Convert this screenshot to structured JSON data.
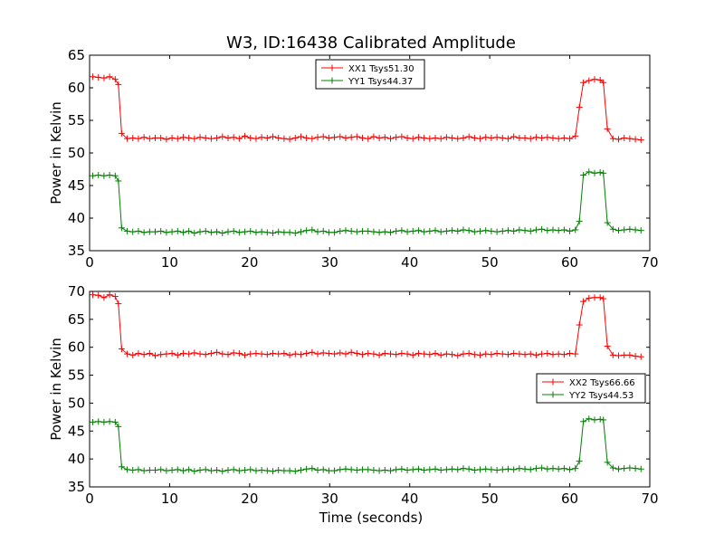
{
  "chart_data": [
    {
      "type": "line",
      "title": "W3, ID:16438 Calibrated Amplitude",
      "xlabel": "",
      "ylabel": "Power in Kelvin",
      "xlim": [
        0,
        70
      ],
      "ylim": [
        35,
        65
      ],
      "xticks": [
        0,
        10,
        20,
        30,
        40,
        50,
        60,
        70
      ],
      "yticks": [
        35,
        40,
        45,
        50,
        55,
        60,
        65
      ],
      "grid": false,
      "legend_position": "top-center",
      "series": [
        {
          "name": "XX1 Tsys51.30",
          "color": "#ff0000",
          "x": [
            0.4,
            1.1,
            1.8,
            2.5,
            3.2,
            3.6,
            4.0,
            4.7,
            5.4,
            6.1,
            6.8,
            7.5,
            8.2,
            8.9,
            9.6,
            10.3,
            11.0,
            11.7,
            12.4,
            13.1,
            13.8,
            14.5,
            15.2,
            15.9,
            16.6,
            17.3,
            18.0,
            18.7,
            19.4,
            20.1,
            20.8,
            21.5,
            22.2,
            22.9,
            23.6,
            24.3,
            25.0,
            25.7,
            26.4,
            27.1,
            27.8,
            28.5,
            29.2,
            29.9,
            30.6,
            31.3,
            32.0,
            32.7,
            33.4,
            34.1,
            34.8,
            35.5,
            36.2,
            36.9,
            37.6,
            38.3,
            39.0,
            39.7,
            40.4,
            41.1,
            41.8,
            42.5,
            43.2,
            43.9,
            44.6,
            45.3,
            46.0,
            46.7,
            47.4,
            48.1,
            48.8,
            49.5,
            50.2,
            50.9,
            51.6,
            52.3,
            53.0,
            53.7,
            54.4,
            55.1,
            55.8,
            56.5,
            57.2,
            57.9,
            58.6,
            59.3,
            60.0,
            60.7,
            61.2,
            61.7,
            62.4,
            63.1,
            63.8,
            64.2,
            64.7,
            65.4,
            66.1,
            66.8,
            67.5,
            68.2,
            68.9
          ],
          "values": [
            61.7,
            61.6,
            61.5,
            61.7,
            61.3,
            60.5,
            53.0,
            52.2,
            52.3,
            52.2,
            52.4,
            52.2,
            52.3,
            52.3,
            52.1,
            52.3,
            52.2,
            52.4,
            52.3,
            52.2,
            52.4,
            52.3,
            52.2,
            52.3,
            52.5,
            52.3,
            52.4,
            52.2,
            52.6,
            52.3,
            52.2,
            52.4,
            52.3,
            52.5,
            52.3,
            52.2,
            52.1,
            52.3,
            52.5,
            52.3,
            52.2,
            52.4,
            52.5,
            52.3,
            52.4,
            52.5,
            52.3,
            52.4,
            52.5,
            52.3,
            52.2,
            52.5,
            52.3,
            52.4,
            52.2,
            52.4,
            52.5,
            52.3,
            52.2,
            52.4,
            52.3,
            52.2,
            52.3,
            52.2,
            52.4,
            52.3,
            52.2,
            52.3,
            52.5,
            52.3,
            52.2,
            52.4,
            52.3,
            52.4,
            52.3,
            52.2,
            52.5,
            52.3,
            52.3,
            52.2,
            52.4,
            52.3,
            52.4,
            52.3,
            52.2,
            52.3,
            52.2,
            52.6,
            57.0,
            60.8,
            61.1,
            61.3,
            61.2,
            60.8,
            53.7,
            52.2,
            52.1,
            52.3,
            52.2,
            52.1,
            52.0
          ]
        },
        {
          "name": "YY1 Tsys44.37",
          "color": "#008000",
          "x": [
            0.4,
            1.1,
            1.8,
            2.5,
            3.2,
            3.6,
            4.0,
            4.7,
            5.4,
            6.1,
            6.8,
            7.5,
            8.2,
            8.9,
            9.6,
            10.3,
            11.0,
            11.7,
            12.4,
            13.1,
            13.8,
            14.5,
            15.2,
            15.9,
            16.6,
            17.3,
            18.0,
            18.7,
            19.4,
            20.1,
            20.8,
            21.5,
            22.2,
            22.9,
            23.6,
            24.3,
            25.0,
            25.7,
            26.4,
            27.1,
            27.8,
            28.5,
            29.2,
            29.9,
            30.6,
            31.3,
            32.0,
            32.7,
            33.4,
            34.1,
            34.8,
            35.5,
            36.2,
            36.9,
            37.6,
            38.3,
            39.0,
            39.7,
            40.4,
            41.1,
            41.8,
            42.5,
            43.2,
            43.9,
            44.6,
            45.3,
            46.0,
            46.7,
            47.4,
            48.1,
            48.8,
            49.5,
            50.2,
            50.9,
            51.6,
            52.3,
            53.0,
            53.7,
            54.4,
            55.1,
            55.8,
            56.5,
            57.2,
            57.9,
            58.6,
            59.3,
            60.0,
            60.7,
            61.2,
            61.7,
            62.4,
            63.1,
            63.8,
            64.2,
            64.7,
            65.4,
            66.1,
            66.8,
            67.5,
            68.2,
            68.9
          ],
          "values": [
            46.5,
            46.6,
            46.5,
            46.6,
            46.5,
            45.7,
            38.5,
            38.0,
            37.9,
            38.0,
            37.8,
            37.9,
            37.9,
            38.0,
            37.8,
            37.9,
            38.0,
            37.8,
            38.0,
            37.7,
            37.9,
            38.0,
            37.8,
            37.9,
            37.7,
            37.9,
            38.0,
            37.8,
            37.9,
            38.0,
            37.8,
            37.9,
            37.8,
            37.7,
            37.9,
            37.8,
            37.8,
            37.7,
            37.9,
            38.1,
            38.2,
            37.9,
            38.0,
            37.8,
            37.8,
            38.0,
            38.1,
            38.0,
            37.9,
            38.0,
            38.0,
            37.9,
            37.8,
            37.9,
            37.8,
            38.0,
            38.1,
            37.9,
            38.0,
            38.1,
            37.9,
            38.0,
            38.1,
            37.9,
            38.0,
            38.1,
            38.0,
            38.2,
            38.1,
            37.9,
            38.0,
            38.1,
            38.0,
            37.9,
            38.0,
            38.1,
            38.0,
            38.2,
            38.1,
            38.0,
            38.2,
            38.3,
            38.1,
            38.2,
            38.1,
            38.2,
            38.0,
            38.2,
            39.5,
            46.6,
            47.1,
            46.9,
            47.0,
            46.9,
            39.3,
            38.3,
            38.1,
            38.2,
            38.3,
            38.2,
            38.1
          ]
        }
      ]
    },
    {
      "type": "line",
      "title": "",
      "xlabel": "Time (seconds)",
      "ylabel": "Power in Kelvin",
      "xlim": [
        0,
        70
      ],
      "ylim": [
        35,
        70
      ],
      "xticks": [
        0,
        10,
        20,
        30,
        40,
        50,
        60,
        70
      ],
      "yticks": [
        35,
        40,
        45,
        50,
        55,
        60,
        65,
        70
      ],
      "grid": false,
      "legend_position": "center-right",
      "series": [
        {
          "name": "XX2 Tsys66.66",
          "color": "#ff0000",
          "x": [
            0.4,
            1.1,
            1.8,
            2.5,
            3.2,
            3.6,
            4.0,
            4.7,
            5.4,
            6.1,
            6.8,
            7.5,
            8.2,
            8.9,
            9.6,
            10.3,
            11.0,
            11.7,
            12.4,
            13.1,
            13.8,
            14.5,
            15.2,
            15.9,
            16.6,
            17.3,
            18.0,
            18.7,
            19.4,
            20.1,
            20.8,
            21.5,
            22.2,
            22.9,
            23.6,
            24.3,
            25.0,
            25.7,
            26.4,
            27.1,
            27.8,
            28.5,
            29.2,
            29.9,
            30.6,
            31.3,
            32.0,
            32.7,
            33.4,
            34.1,
            34.8,
            35.5,
            36.2,
            36.9,
            37.6,
            38.3,
            39.0,
            39.7,
            40.4,
            41.1,
            41.8,
            42.5,
            43.2,
            43.9,
            44.6,
            45.3,
            46.0,
            46.7,
            47.4,
            48.1,
            48.8,
            49.5,
            50.2,
            50.9,
            51.6,
            52.3,
            53.0,
            53.7,
            54.4,
            55.1,
            55.8,
            56.5,
            57.2,
            57.9,
            58.6,
            59.3,
            60.0,
            60.7,
            61.2,
            61.7,
            62.4,
            63.1,
            63.8,
            64.2,
            64.7,
            65.4,
            66.1,
            66.8,
            67.5,
            68.2,
            68.9
          ],
          "values": [
            69.4,
            69.3,
            68.9,
            69.4,
            69.1,
            67.8,
            59.7,
            58.8,
            58.6,
            58.9,
            58.7,
            58.9,
            58.5,
            58.7,
            58.8,
            58.9,
            58.6,
            58.9,
            58.8,
            59.0,
            58.8,
            58.7,
            58.9,
            59.1,
            58.8,
            58.7,
            59.0,
            58.9,
            58.6,
            58.8,
            58.9,
            58.8,
            58.7,
            58.9,
            58.8,
            58.9,
            58.6,
            58.8,
            58.7,
            58.9,
            59.1,
            58.8,
            59.0,
            58.9,
            58.8,
            59.0,
            58.8,
            59.1,
            58.9,
            58.7,
            58.9,
            58.8,
            58.6,
            58.9,
            58.8,
            58.7,
            58.9,
            58.8,
            58.6,
            58.9,
            58.8,
            58.7,
            58.9,
            58.6,
            58.8,
            58.7,
            58.5,
            58.8,
            58.9,
            58.7,
            58.6,
            58.8,
            58.7,
            58.9,
            58.8,
            58.7,
            58.9,
            58.8,
            58.7,
            58.8,
            58.6,
            58.8,
            58.9,
            58.7,
            58.8,
            58.7,
            58.9,
            58.8,
            64.0,
            68.2,
            68.8,
            68.9,
            68.9,
            68.7,
            60.2,
            58.6,
            58.5,
            58.6,
            58.6,
            58.4,
            58.3
          ]
        },
        {
          "name": "YY2 Tsys44.53",
          "color": "#008000",
          "x": [
            0.4,
            1.1,
            1.8,
            2.5,
            3.2,
            3.6,
            4.0,
            4.7,
            5.4,
            6.1,
            6.8,
            7.5,
            8.2,
            8.9,
            9.6,
            10.3,
            11.0,
            11.7,
            12.4,
            13.1,
            13.8,
            14.5,
            15.2,
            15.9,
            16.6,
            17.3,
            18.0,
            18.7,
            19.4,
            20.1,
            20.8,
            21.5,
            22.2,
            22.9,
            23.6,
            24.3,
            25.0,
            25.7,
            26.4,
            27.1,
            27.8,
            28.5,
            29.2,
            29.9,
            30.6,
            31.3,
            32.0,
            32.7,
            33.4,
            34.1,
            34.8,
            35.5,
            36.2,
            36.9,
            37.6,
            38.3,
            39.0,
            39.7,
            40.4,
            41.1,
            41.8,
            42.5,
            43.2,
            43.9,
            44.6,
            45.3,
            46.0,
            46.7,
            47.4,
            48.1,
            48.8,
            49.5,
            50.2,
            50.9,
            51.6,
            52.3,
            53.0,
            53.7,
            54.4,
            55.1,
            55.8,
            56.5,
            57.2,
            57.9,
            58.6,
            59.3,
            60.0,
            60.7,
            61.2,
            61.7,
            62.4,
            63.1,
            63.8,
            64.2,
            64.7,
            65.4,
            66.1,
            66.8,
            67.5,
            68.2,
            68.9
          ],
          "values": [
            46.6,
            46.7,
            46.6,
            46.7,
            46.6,
            45.8,
            38.6,
            38.1,
            38.0,
            38.1,
            37.9,
            38.0,
            38.0,
            38.1,
            37.9,
            38.0,
            38.1,
            37.9,
            38.1,
            37.8,
            38.0,
            38.1,
            37.9,
            38.0,
            37.8,
            38.0,
            38.1,
            37.9,
            38.0,
            38.1,
            37.9,
            38.0,
            37.9,
            37.8,
            38.0,
            37.9,
            37.9,
            37.8,
            38.0,
            38.2,
            38.3,
            38.0,
            38.1,
            37.9,
            37.9,
            38.1,
            38.2,
            38.1,
            38.0,
            38.1,
            38.1,
            38.0,
            37.9,
            38.0,
            37.9,
            38.1,
            38.2,
            38.0,
            38.1,
            38.2,
            38.0,
            38.1,
            38.2,
            38.0,
            38.1,
            38.2,
            38.1,
            38.3,
            38.2,
            38.0,
            38.1,
            38.2,
            38.1,
            38.0,
            38.1,
            38.2,
            38.1,
            38.3,
            38.2,
            38.1,
            38.3,
            38.4,
            38.2,
            38.3,
            38.2,
            38.3,
            38.1,
            38.3,
            39.6,
            46.7,
            47.2,
            47.0,
            47.1,
            47.0,
            39.4,
            38.4,
            38.2,
            38.3,
            38.4,
            38.3,
            38.2
          ]
        }
      ]
    }
  ]
}
